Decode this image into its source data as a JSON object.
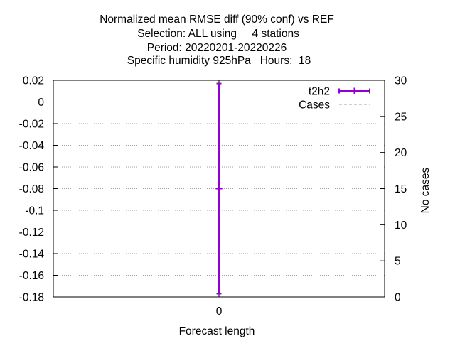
{
  "chart_data": {
    "type": "line",
    "title_lines": [
      "Normalized mean RMSE diff (90% conf) vs REF",
      "Selection: ALL using     4 stations",
      "Period: 20220201-20220226",
      "Specific humidity 925hPa   Hours:  18"
    ],
    "xlabel": "Forecast length",
    "ylabel": "",
    "y2label": "No cases",
    "x_ticks": [
      "0"
    ],
    "y_ticks": [
      0.02,
      0,
      -0.02,
      -0.04,
      -0.06,
      -0.08,
      -0.1,
      -0.12,
      -0.14,
      -0.16,
      -0.18
    ],
    "y_tick_labels": [
      "0.02",
      "0",
      "-0.02",
      "-0.04",
      "-0.06",
      "-0.08",
      "-0.1",
      "-0.12",
      "-0.14",
      "-0.16",
      "-0.18"
    ],
    "y2_ticks": [
      0,
      5,
      10,
      15,
      20,
      25,
      30
    ],
    "y2_tick_labels": [
      "0",
      "5",
      "10",
      "15",
      "20",
      "25",
      "30"
    ],
    "xlim": [
      -1,
      1
    ],
    "ylim": [
      -0.18,
      0.02
    ],
    "y2lim": [
      0,
      30
    ],
    "grid": "horizontal",
    "legend_position": "top-right",
    "series": [
      {
        "name": "t2h2",
        "style": "errorbars",
        "color": "#9400d3",
        "x": [
          0
        ],
        "y": [
          -0.08
        ],
        "ylow": [
          -0.177
        ],
        "yhigh": [
          0.017
        ]
      },
      {
        "name": "Cases",
        "style": "dashed",
        "color": "#a0a0a0",
        "axis": "y2",
        "x": [],
        "y": []
      }
    ]
  }
}
